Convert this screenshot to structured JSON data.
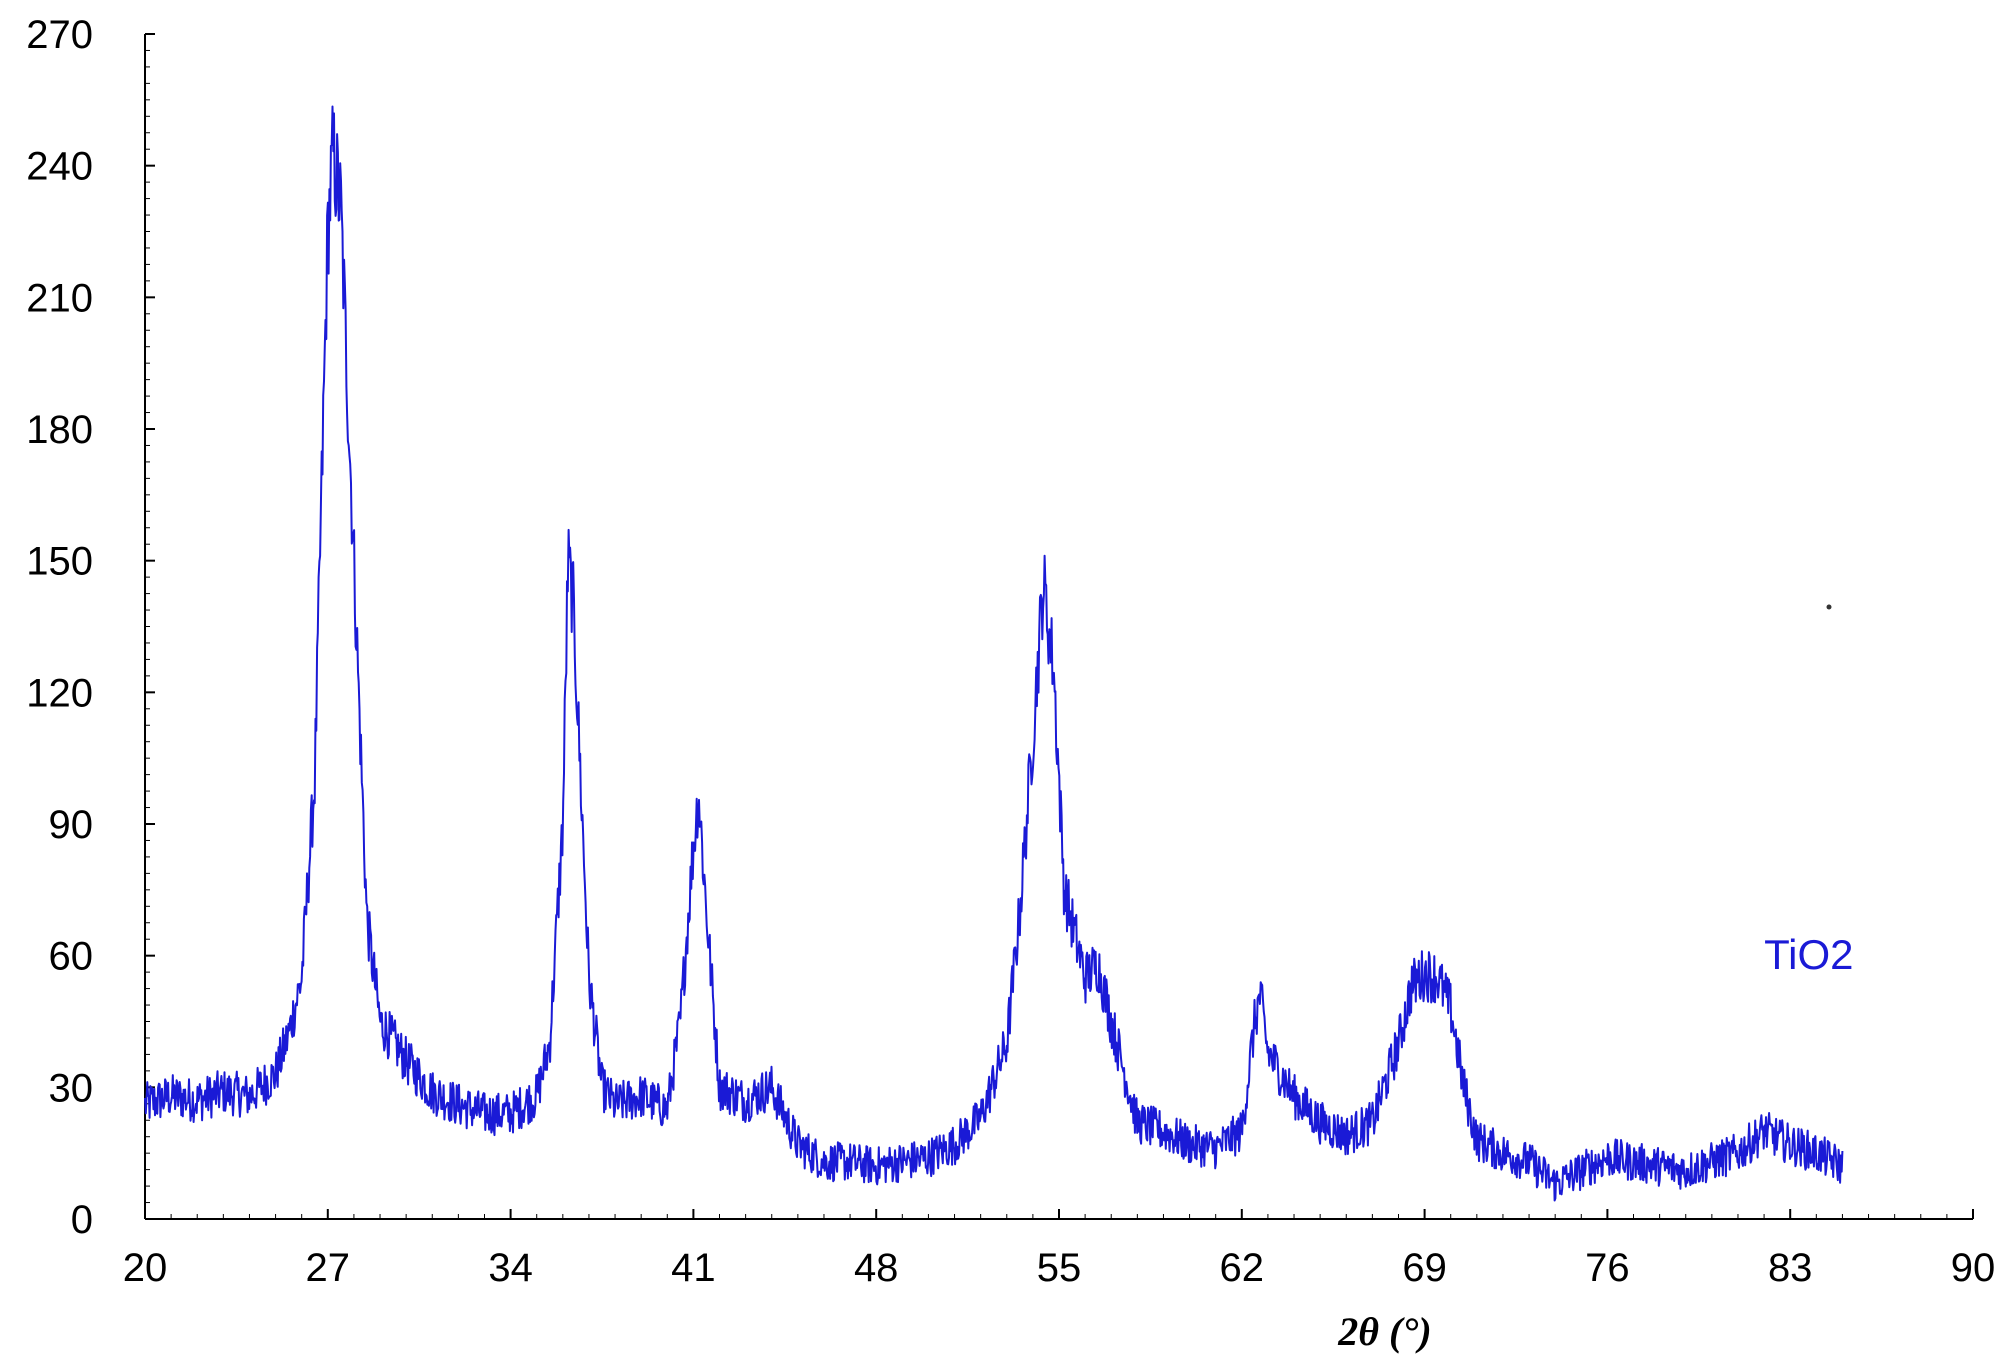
{
  "chart_data": {
    "type": "line",
    "title": "",
    "xlabel": "2θ (°)",
    "ylabel": "",
    "xlim": [
      20,
      90
    ],
    "ylim": [
      0,
      270
    ],
    "x_ticks": [
      20,
      27,
      34,
      41,
      48,
      55,
      62,
      69,
      76,
      83,
      90
    ],
    "y_ticks": [
      0,
      30,
      60,
      90,
      120,
      150,
      180,
      210,
      240,
      270
    ],
    "grid": false,
    "series": [
      {
        "name": "TiO2",
        "color": "#1a1ad6",
        "points": [
          [
            20.0,
            26
          ],
          [
            21.0,
            28
          ],
          [
            22.0,
            27
          ],
          [
            23.0,
            29
          ],
          [
            24.0,
            28
          ],
          [
            25.0,
            33
          ],
          [
            25.5,
            42
          ],
          [
            26.0,
            55
          ],
          [
            26.5,
            100
          ],
          [
            27.0,
            225
          ],
          [
            27.2,
            243
          ],
          [
            27.5,
            230
          ],
          [
            28.0,
            150
          ],
          [
            28.5,
            68
          ],
          [
            29.0,
            45
          ],
          [
            30.0,
            36
          ],
          [
            31.0,
            29
          ],
          [
            32.0,
            26
          ],
          [
            33.0,
            24
          ],
          [
            34.0,
            24
          ],
          [
            35.0,
            28
          ],
          [
            35.5,
            40
          ],
          [
            36.0,
            90
          ],
          [
            36.2,
            150
          ],
          [
            36.4,
            140
          ],
          [
            37.0,
            55
          ],
          [
            37.5,
            30
          ],
          [
            38.0,
            26
          ],
          [
            39.0,
            28
          ],
          [
            40.0,
            25
          ],
          [
            40.5,
            45
          ],
          [
            41.0,
            85
          ],
          [
            41.2,
            97
          ],
          [
            41.5,
            70
          ],
          [
            42.0,
            30
          ],
          [
            43.0,
            27
          ],
          [
            44.0,
            30
          ],
          [
            45.0,
            17
          ],
          [
            46.0,
            13
          ],
          [
            47.0,
            13
          ],
          [
            48.0,
            12
          ],
          [
            49.0,
            13
          ],
          [
            50.0,
            14
          ],
          [
            51.0,
            17
          ],
          [
            52.0,
            23
          ],
          [
            53.0,
            40
          ],
          [
            53.5,
            70
          ],
          [
            54.0,
            110
          ],
          [
            54.4,
            145
          ],
          [
            54.8,
            125
          ],
          [
            55.2,
            75
          ],
          [
            56.0,
            55
          ],
          [
            56.5,
            58
          ],
          [
            57.0,
            45
          ],
          [
            58.0,
            22
          ],
          [
            59.0,
            20
          ],
          [
            60.0,
            17
          ],
          [
            61.0,
            16
          ],
          [
            62.0,
            20
          ],
          [
            62.5,
            45
          ],
          [
            62.7,
            51
          ],
          [
            63.0,
            38
          ],
          [
            64.0,
            28
          ],
          [
            65.0,
            22
          ],
          [
            66.0,
            19
          ],
          [
            67.0,
            22
          ],
          [
            68.0,
            40
          ],
          [
            68.5,
            53
          ],
          [
            69.0,
            56
          ],
          [
            69.5,
            55
          ],
          [
            70.0,
            48
          ],
          [
            70.5,
            30
          ],
          [
            71.0,
            18
          ],
          [
            72.0,
            15
          ],
          [
            73.0,
            13
          ],
          [
            74.0,
            8
          ],
          [
            75.0,
            11
          ],
          [
            76.0,
            14
          ],
          [
            77.0,
            13
          ],
          [
            78.0,
            12
          ],
          [
            79.0,
            11
          ],
          [
            80.0,
            13
          ],
          [
            81.0,
            15
          ],
          [
            82.0,
            20
          ],
          [
            83.0,
            17
          ],
          [
            84.0,
            15
          ],
          [
            85.0,
            12
          ]
        ]
      }
    ],
    "annotations": [
      {
        "text": "TiO2",
        "x": 82,
        "y": 57,
        "color": "#1a1ad6"
      }
    ]
  }
}
